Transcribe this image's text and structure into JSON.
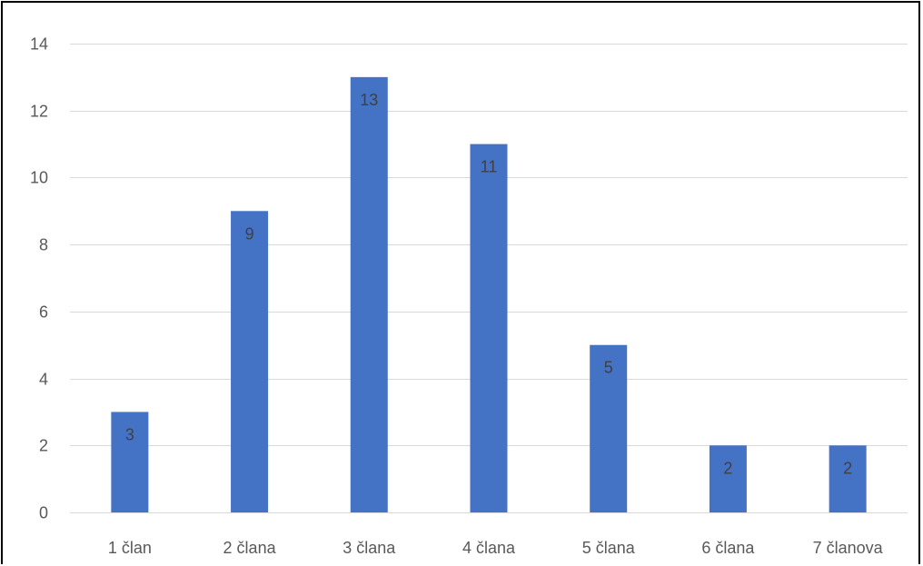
{
  "chart_data": {
    "type": "bar",
    "title": "",
    "xlabel": "",
    "ylabel": "",
    "categories": [
      "1 član",
      "2 člana",
      "3 člana",
      "4 člana",
      "5 člana",
      "6 člana",
      "7 članova"
    ],
    "values": [
      3,
      9,
      13,
      11,
      5,
      2,
      2
    ],
    "data_labels": [
      "3",
      "9",
      "13",
      "11",
      "5",
      "2",
      "2"
    ],
    "ylim": [
      0,
      14
    ],
    "yticks": [
      "0",
      "2",
      "4",
      "6",
      "8",
      "10",
      "12",
      "14"
    ],
    "ytick_values": [
      0,
      2,
      4,
      6,
      8,
      10,
      12,
      14
    ],
    "grid": true,
    "legend": "none",
    "colors": {
      "bar": "#4472C4",
      "grid": "#D9D9D9",
      "tick_text": "#595959",
      "label_text": "#404040"
    }
  }
}
